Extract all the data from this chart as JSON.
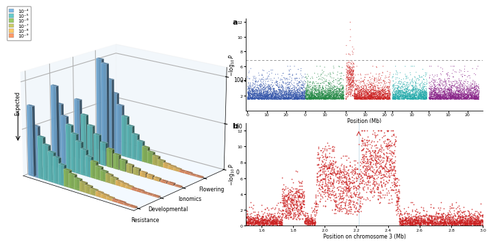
{
  "legend_colors": [
    "#7bb8e8",
    "#66cccc",
    "#99cc66",
    "#cccc66",
    "#ffcc66",
    "#ff9966"
  ],
  "legend_labels": [
    "10⁻⁴",
    "10⁻⁵",
    "10⁻⁶",
    "10⁻⁷",
    "10⁻⁸",
    "10⁻⁹"
  ],
  "phenotype_groups": [
    "Resistance",
    "Developmental",
    "Ionomics",
    "Flowering"
  ],
  "threshold_line": 6.8,
  "chr_colors": [
    "#3355aa",
    "#228844",
    "#cc2222",
    "#22aaaa",
    "#882288"
  ],
  "chr_lengths_mb": [
    30,
    20,
    23,
    18,
    26
  ],
  "panel_a_label": "a",
  "panel_b_label": "b"
}
